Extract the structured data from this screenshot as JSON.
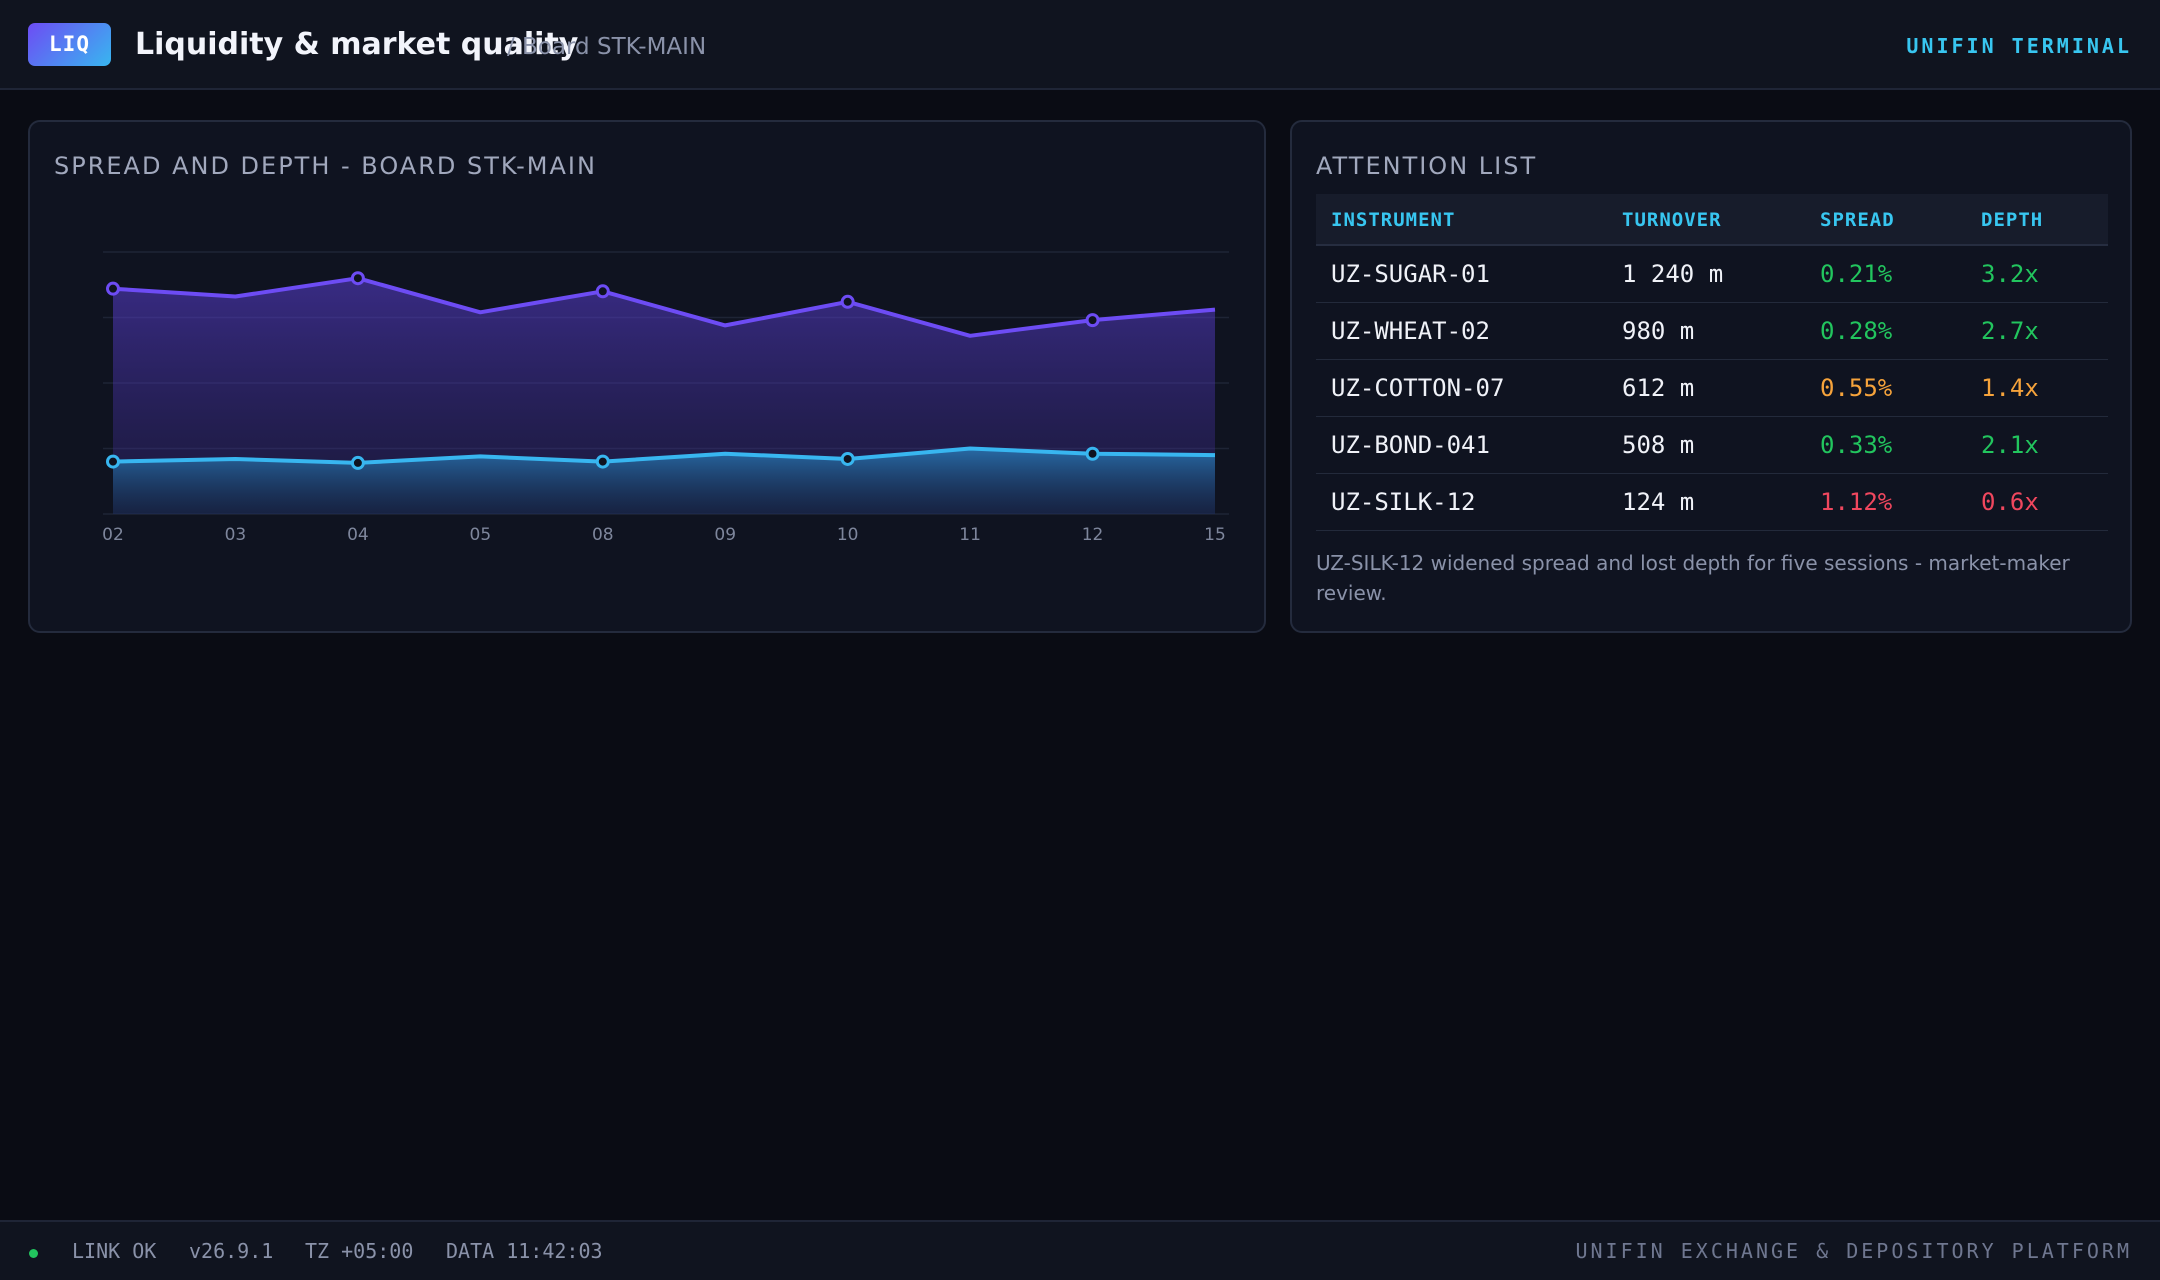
{
  "header": {
    "logo": "LIQ",
    "title": "Liquidity & market quality",
    "subtitle": "/ Board STK-MAIN",
    "brand": "UNIFIN TERMINAL"
  },
  "chart_panel": {
    "title": "SPREAD AND DEPTH - BOARD STK-MAIN"
  },
  "chart_data": {
    "type": "area",
    "categories": [
      "02",
      "03",
      "04",
      "05",
      "08",
      "09",
      "10",
      "11",
      "12",
      "15"
    ],
    "series": [
      {
        "color": "#6d4cf4",
        "values": [
          0.86,
          0.83,
          0.9,
          0.77,
          0.85,
          0.72,
          0.81,
          0.68,
          0.74,
          0.78
        ],
        "markers": [
          0,
          2,
          4,
          6,
          8
        ]
      },
      {
        "color": "#38b6f0",
        "values": [
          0.2,
          0.21,
          0.195,
          0.22,
          0.2,
          0.23,
          0.21,
          0.25,
          0.23,
          0.225
        ],
        "markers": [
          0,
          2,
          4,
          6,
          8
        ]
      }
    ],
    "ylim": [
      0,
      1
    ],
    "grid": true
  },
  "attention": {
    "title": "ATTENTION LIST",
    "columns": [
      "INSTRUMENT",
      "TURNOVER",
      "SPREAD",
      "DEPTH"
    ],
    "rows": [
      {
        "instrument": "UZ-SUGAR-01",
        "turnover": "1 240 m",
        "spread": "0.21%",
        "depth": "3.2x",
        "status": "good"
      },
      {
        "instrument": "UZ-WHEAT-02",
        "turnover": "980 m",
        "spread": "0.28%",
        "depth": "2.7x",
        "status": "good"
      },
      {
        "instrument": "UZ-COTTON-07",
        "turnover": "612 m",
        "spread": "0.55%",
        "depth": "1.4x",
        "status": "warn"
      },
      {
        "instrument": "UZ-BOND-041",
        "turnover": "508 m",
        "spread": "0.33%",
        "depth": "2.1x",
        "status": "good"
      },
      {
        "instrument": "UZ-SILK-12",
        "turnover": "124 m",
        "spread": "1.12%",
        "depth": "0.6x",
        "status": "bad"
      }
    ],
    "note": "UZ-SILK-12 widened spread and lost depth for five sessions - market-maker review."
  },
  "status": {
    "link": "LINK OK",
    "version": "v26.9.1",
    "tz": "TZ +05:00",
    "data_time": "DATA 11:42:03",
    "platform": "UNIFIN EXCHANGE & DEPOSITORY PLATFORM"
  }
}
